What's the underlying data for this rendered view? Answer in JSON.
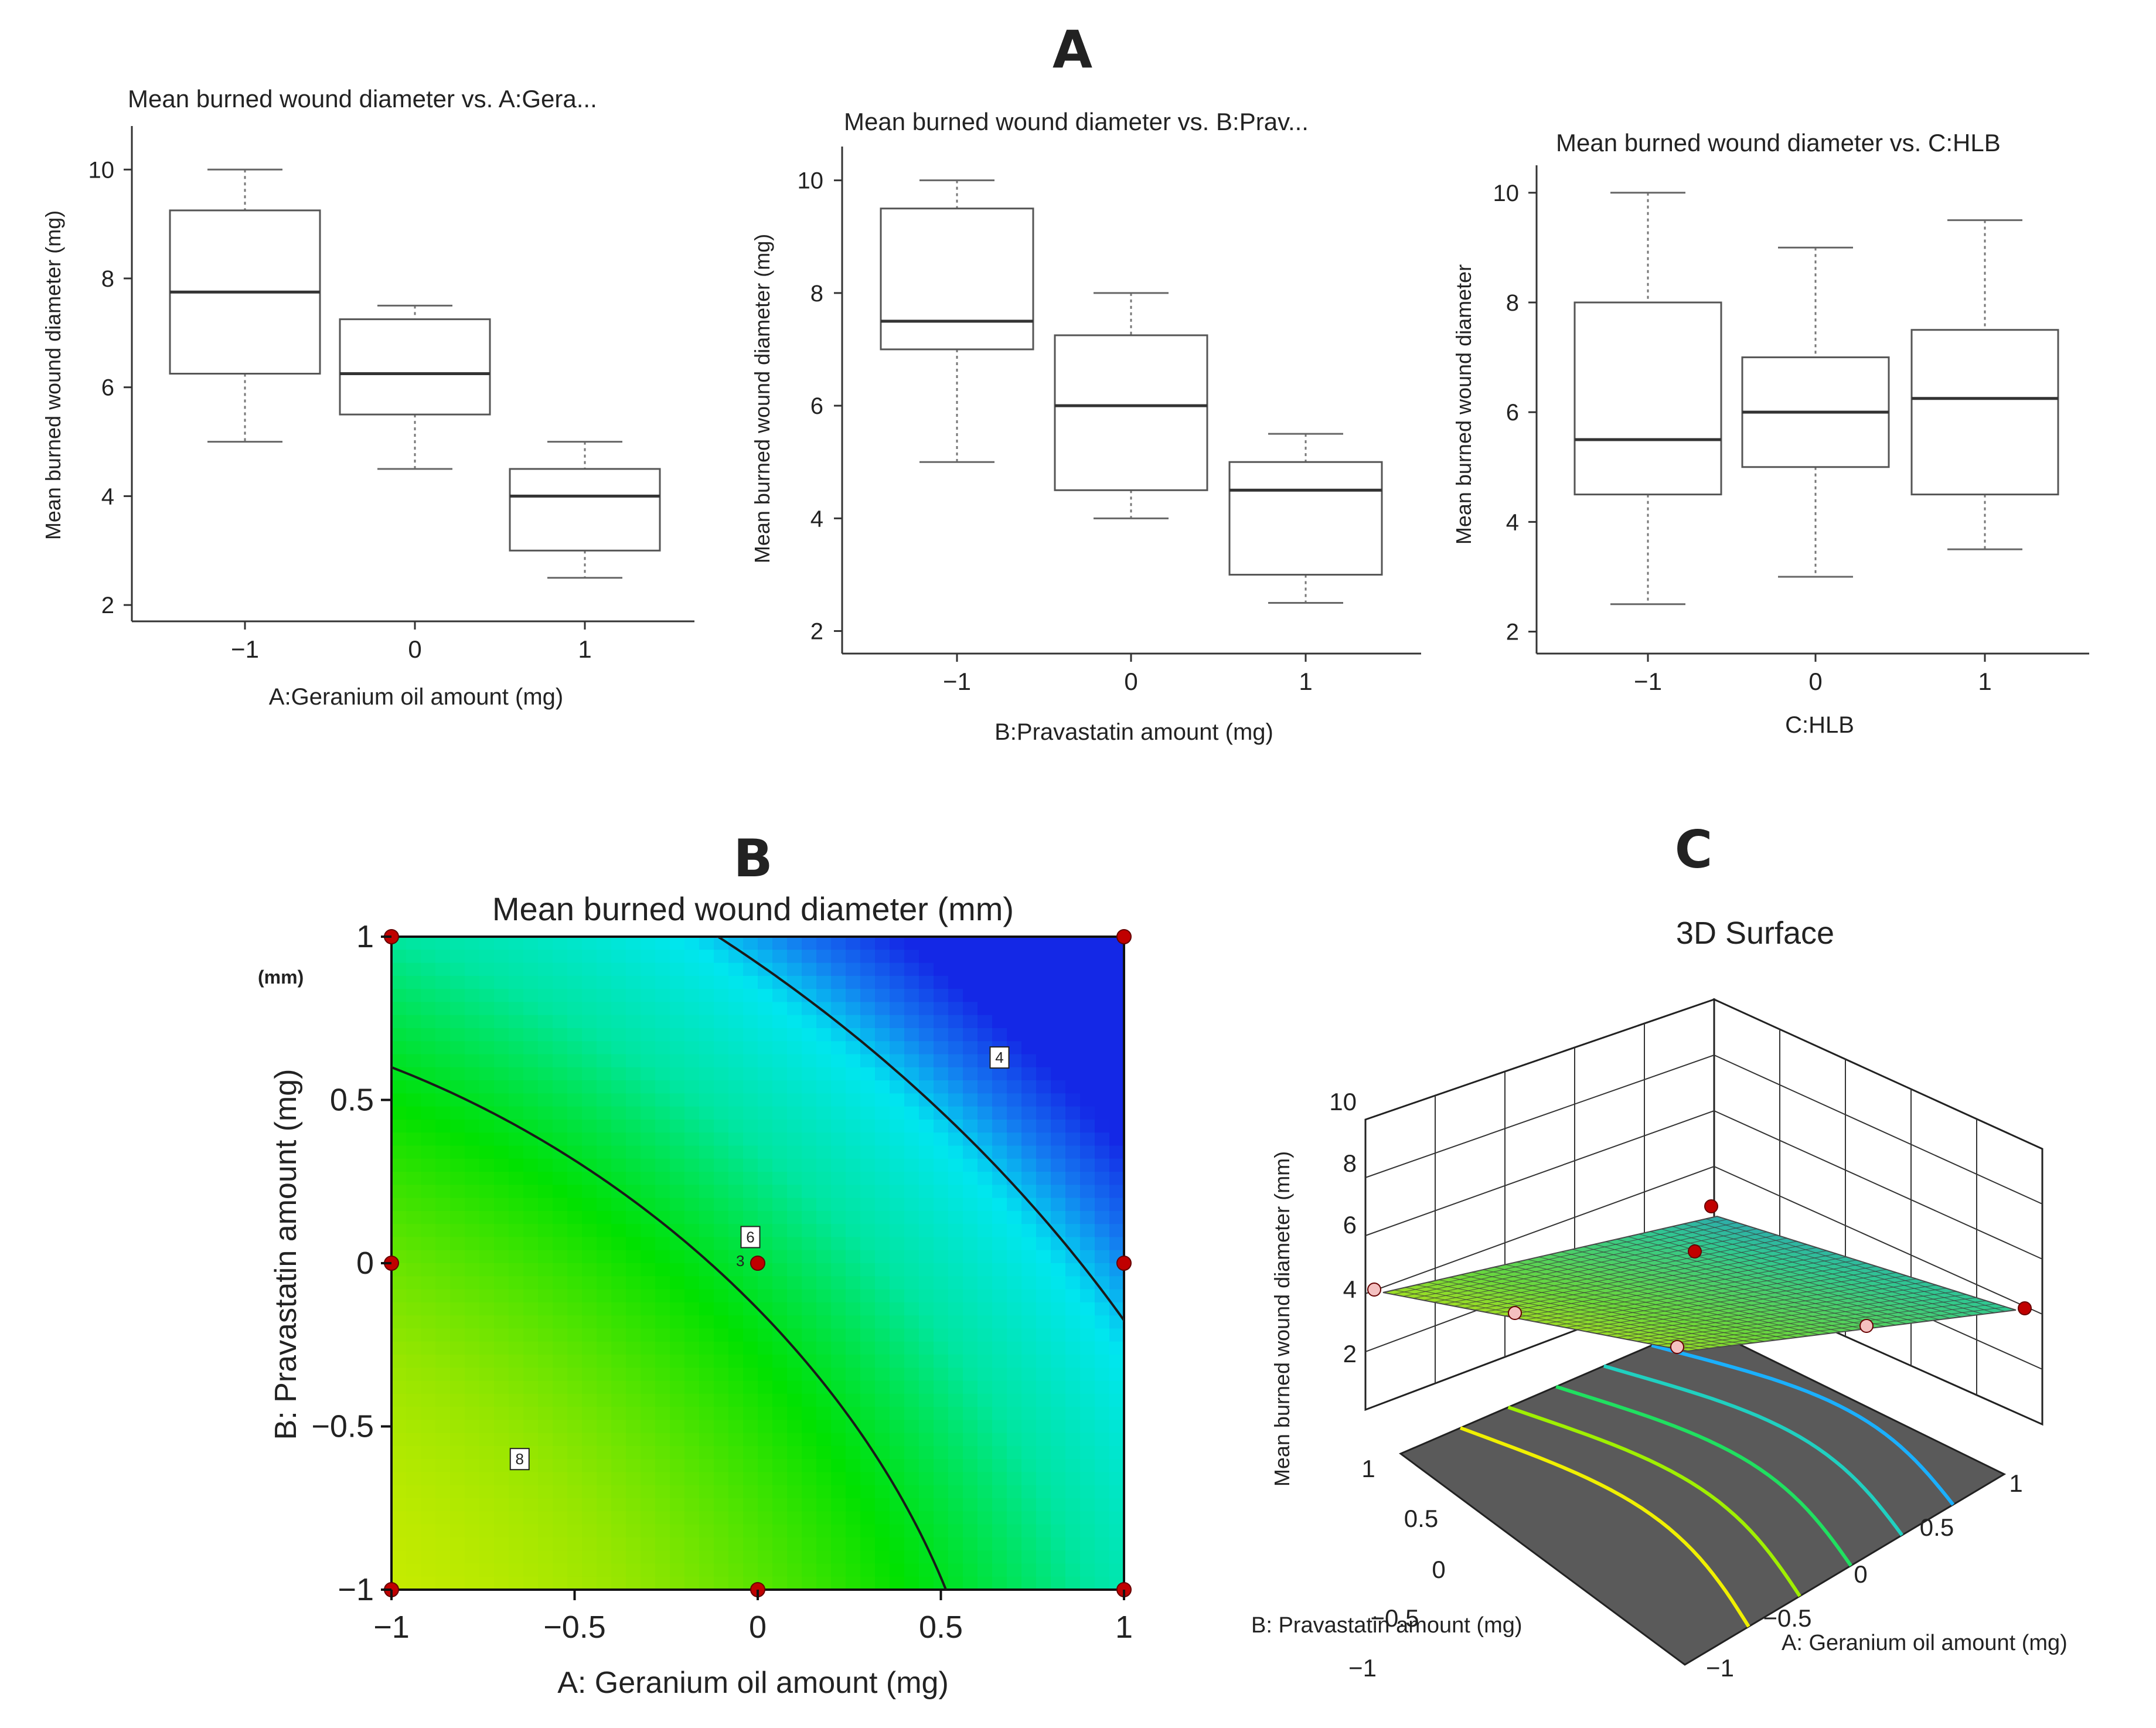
{
  "panel_labels": [
    "A",
    "B",
    "C"
  ],
  "chart_data": [
    {
      "type": "box",
      "title": "Mean burned wound diameter vs. A:Gera...",
      "xlabel": "A:Geranium oil amount (mg)",
      "ylabel": "Mean burned wound diameter (mg)",
      "categories": [
        "-1",
        "0",
        "1"
      ],
      "category_labels": [
        "−1",
        "0",
        "1"
      ],
      "yticks": [
        "2",
        "4",
        "6",
        "8",
        "10"
      ],
      "ylim": [
        1.7,
        10.8
      ],
      "boxes": [
        {
          "min": 5,
          "q1": 6.25,
          "median": 7.75,
          "q3": 9.25,
          "max": 10
        },
        {
          "min": 4.5,
          "q1": 5.5,
          "median": 6.25,
          "q3": 7.25,
          "max": 7.5
        },
        {
          "min": 2.5,
          "q1": 3,
          "median": 4,
          "q3": 4.5,
          "max": 5
        }
      ]
    },
    {
      "type": "box",
      "title": "Mean burned wound diameter vs. B:Prav...",
      "xlabel": "B:Pravastatin amount  (mg)",
      "ylabel": "Mean burned wound diameter (mg)",
      "categories": [
        "-1",
        "0",
        "1"
      ],
      "category_labels": [
        "−1",
        "0",
        "1"
      ],
      "yticks": [
        "2",
        "4",
        "6",
        "8",
        "10"
      ],
      "ylim": [
        1.6,
        10.6
      ],
      "boxes": [
        {
          "min": 5,
          "q1": 7,
          "median": 7.5,
          "q3": 9.5,
          "max": 10
        },
        {
          "min": 4,
          "q1": 4.5,
          "median": 6,
          "q3": 7.25,
          "max": 8
        },
        {
          "min": 2.5,
          "q1": 3,
          "median": 4.5,
          "q3": 5,
          "max": 5.5
        }
      ]
    },
    {
      "type": "box",
      "title": "Mean burned wound diameter vs. C:HLB",
      "xlabel": "C:HLB",
      "ylabel": "Mean burned wound diameter",
      "categories": [
        "-1",
        "0",
        "1"
      ],
      "category_labels": [
        "−1",
        "0",
        "1"
      ],
      "yticks": [
        "2",
        "4",
        "6",
        "8",
        "10"
      ],
      "ylim": [
        1.6,
        10.5
      ],
      "boxes": [
        {
          "min": 2.5,
          "q1": 4.5,
          "median": 5.5,
          "q3": 8,
          "max": 10
        },
        {
          "min": 3,
          "q1": 5,
          "median": 6,
          "q3": 7,
          "max": 9
        },
        {
          "min": 3.5,
          "q1": 4.5,
          "median": 6.25,
          "q3": 7.5,
          "max": 9.5
        }
      ]
    },
    {
      "type": "contour",
      "title": "Mean burned wound diameter (mm)",
      "xlabel": "A: Geranium oil amount (mg)",
      "ylabel": "B: Pravastatin amount  (mg)",
      "corner_label": "(mm)",
      "center_label": "3",
      "xticks": [
        "−1",
        "−0.5",
        "0",
        "0.5",
        "1"
      ],
      "yticks": [
        "−1",
        "−0.5",
        "0",
        "0.5",
        "1"
      ],
      "xlim": [
        -1,
        1
      ],
      "ylim": [
        -1,
        1
      ],
      "contour_levels": [
        {
          "label": "8",
          "value": 8,
          "label_at": [
            -0.65,
            -0.6
          ]
        },
        {
          "label": "6",
          "value": 6,
          "label_at": [
            -0.02,
            0.08
          ]
        },
        {
          "label": "4",
          "value": 4,
          "label_at": [
            0.66,
            0.63
          ]
        }
      ],
      "design_points": [
        [
          -1,
          -1
        ],
        [
          0,
          -1
        ],
        [
          1,
          -1
        ],
        [
          -1,
          0
        ],
        [
          0,
          0
        ],
        [
          1,
          0
        ],
        [
          -1,
          1
        ],
        [
          1,
          1
        ]
      ],
      "colors": {
        "high": "#ff5a00",
        "mid": "#00e000",
        "low": "#1a3cff"
      }
    },
    {
      "type": "surface3d",
      "title": "3D Surface",
      "xlabel": "A: Geranium oil amount (mg)",
      "ylabel": "B: Pravastatin amount  (mg)",
      "zlabel": "Mean burned wound diameter (mm)",
      "xticks": [
        "−1",
        "−0.5",
        "0",
        "0.5",
        "1"
      ],
      "yticks": [
        "−1",
        "−0.5",
        "0",
        "0.5",
        "1"
      ],
      "zticks": [
        "2",
        "4",
        "6",
        "8",
        "10"
      ],
      "floor_color": "#5a5a5a",
      "contour_colors": [
        "#f0f000",
        "#9ff000",
        "#20e060",
        "#20d0c0",
        "#1ab0ff"
      ]
    }
  ]
}
